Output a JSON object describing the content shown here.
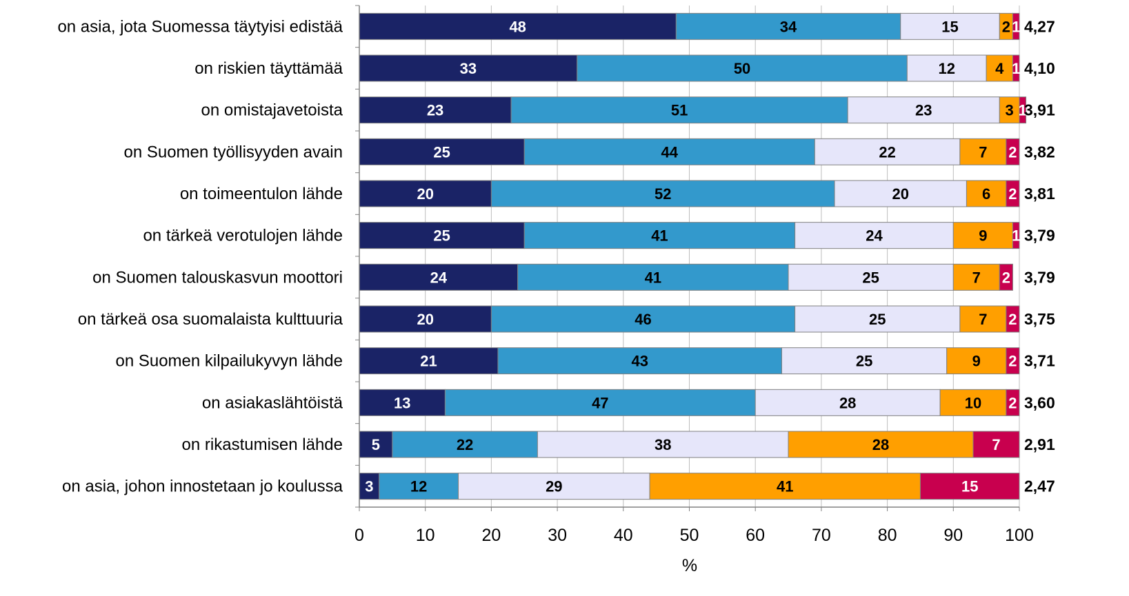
{
  "chart_data": {
    "type": "bar",
    "orientation": "horizontal",
    "stacked": true,
    "xlabel": "%",
    "xlim": [
      0,
      100
    ],
    "xticks": [
      0,
      10,
      20,
      30,
      40,
      50,
      60,
      70,
      80,
      90,
      100
    ],
    "grid": "vertical",
    "legend": "none",
    "categories": [
      "on asia, jota Suomessa täytyisi edistää",
      "on riskien täyttämää",
      "on omistajavetoista",
      "on Suomen työllisyyden avain",
      "on toimeentulon lähde",
      "on tärkeä verotulojen lähde",
      "on Suomen talouskasvun moottori",
      "on tärkeä osa suomalaista kulttuuria",
      "on Suomen kilpailukyvyn lähde",
      "on asiakaslähtöistä",
      "on rikastumisen lähde",
      "on asia, johon innostetaan jo koulussa"
    ],
    "series": [
      {
        "color": "#1a2366",
        "label_color": "#ffffff",
        "values": [
          48,
          33,
          23,
          25,
          20,
          25,
          24,
          20,
          21,
          13,
          5,
          3
        ]
      },
      {
        "color": "#3399cc",
        "label_color": "#000000",
        "values": [
          34,
          50,
          51,
          44,
          52,
          41,
          41,
          46,
          43,
          47,
          22,
          12
        ]
      },
      {
        "color": "#e6e6fa",
        "label_color": "#000000",
        "values": [
          15,
          12,
          23,
          22,
          20,
          24,
          25,
          25,
          25,
          28,
          38,
          29
        ]
      },
      {
        "color": "#ff9f00",
        "label_color": "#000000",
        "values": [
          2,
          4,
          3,
          7,
          6,
          9,
          7,
          7,
          9,
          10,
          28,
          41
        ]
      },
      {
        "color": "#c8004e",
        "label_color": "#ffffff",
        "values": [
          1,
          1,
          1,
          2,
          2,
          1,
          2,
          2,
          2,
          2,
          7,
          15
        ]
      }
    ],
    "averages": [
      "4,27",
      "4,10",
      "3,91",
      "3,82",
      "3,81",
      "3,79",
      "3,79",
      "3,75",
      "3,71",
      "3,60",
      "2,91",
      "2,47"
    ]
  }
}
